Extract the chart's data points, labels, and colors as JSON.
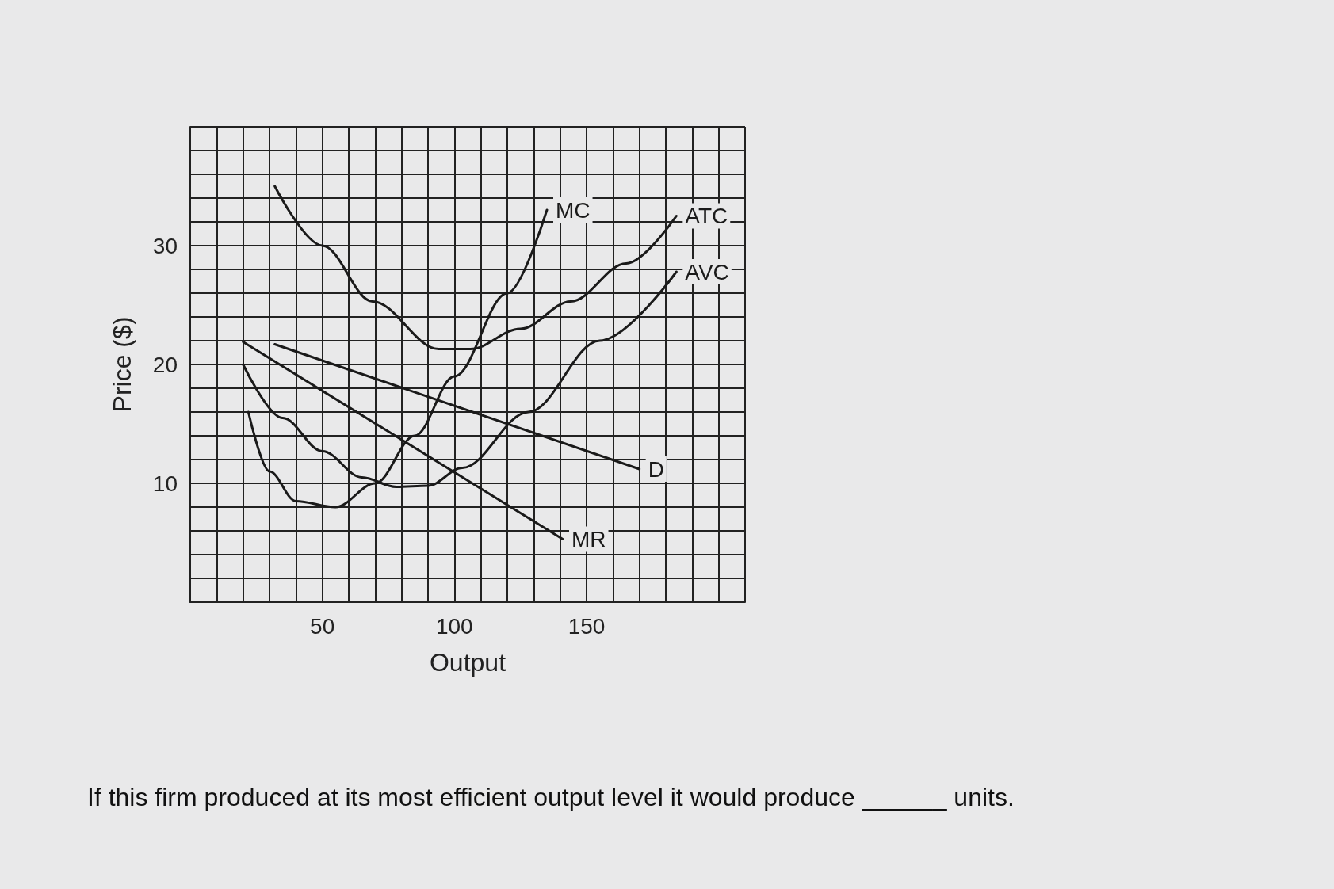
{
  "chart_data": {
    "type": "line",
    "xlabel": "Output",
    "ylabel": "Price ($)",
    "xlim": [
      0,
      210
    ],
    "ylim": [
      0,
      40
    ],
    "xticks": [
      {
        "value": 0,
        "label": null
      },
      {
        "value": 10,
        "label": null
      },
      {
        "value": 20,
        "label": null
      },
      {
        "value": 30,
        "label": null
      },
      {
        "value": 40,
        "label": null
      },
      50,
      {
        "value": 60,
        "label": null
      },
      {
        "value": 70,
        "label": null
      },
      {
        "value": 80,
        "label": null
      },
      {
        "value": 90,
        "label": null
      },
      100,
      {
        "value": 110,
        "label": null
      },
      {
        "value": 120,
        "label": null
      },
      {
        "value": 130,
        "label": null
      },
      {
        "value": 140,
        "label": null
      },
      150,
      {
        "value": 160,
        "label": null
      },
      {
        "value": 170,
        "label": null
      },
      {
        "value": 180,
        "label": null
      },
      {
        "value": 190,
        "label": null
      },
      {
        "value": 200,
        "label": null
      },
      {
        "value": 210,
        "label": null
      }
    ],
    "yticks": [
      {
        "value": 0,
        "label": null
      },
      {
        "value": 2,
        "label": null
      },
      {
        "value": 4,
        "label": null
      },
      {
        "value": 6,
        "label": null
      },
      {
        "value": 8,
        "label": null
      },
      10,
      {
        "value": 12,
        "label": null
      },
      {
        "value": 14,
        "label": null
      },
      {
        "value": 16,
        "label": null
      },
      {
        "value": 18,
        "label": null
      },
      20,
      {
        "value": 22,
        "label": null
      },
      {
        "value": 24,
        "label": null
      },
      {
        "value": 26,
        "label": null
      },
      {
        "value": 28,
        "label": null
      },
      30,
      {
        "value": 32,
        "label": null
      },
      {
        "value": 34,
        "label": null
      },
      {
        "value": 36,
        "label": null
      },
      {
        "value": 38,
        "label": null
      },
      {
        "value": 40,
        "label": null
      }
    ],
    "grid": true,
    "legend": false,
    "marker": "none",
    "line_style": "solid",
    "series": [
      {
        "name": "MC",
        "color": "#1a1a1a",
        "x": [
          22,
          30,
          40,
          55,
          70,
          85,
          100,
          120,
          135
        ],
        "values": [
          16,
          11,
          8.5,
          8,
          10,
          14,
          19,
          26,
          33
        ]
      },
      {
        "name": "ATC",
        "color": "#1a1a1a",
        "x": [
          32,
          50,
          69,
          94,
          106,
          125,
          144,
          165,
          184
        ],
        "values": [
          35,
          30,
          25.3,
          21.3,
          21.3,
          23,
          25.3,
          28.5,
          32.5
        ]
      },
      {
        "name": "AVC",
        "color": "#1a1a1a",
        "x": [
          20,
          35,
          50,
          65,
          78,
          90,
          103,
          128,
          155,
          184
        ],
        "values": [
          20,
          15.5,
          12.7,
          10.5,
          9.7,
          9.8,
          11.3,
          16,
          22,
          27.8
        ]
      },
      {
        "name": "D",
        "color": "#1a1a1a",
        "x": [
          32,
          170
        ],
        "values": [
          21.7,
          11.2
        ]
      },
      {
        "name": "MR",
        "color": "#1a1a1a",
        "x": [
          20,
          141
        ],
        "values": [
          21.9,
          5.3
        ]
      }
    ],
    "annotations": [
      "If this firm produced at its most efficient output level it would produce ______ units."
    ]
  }
}
